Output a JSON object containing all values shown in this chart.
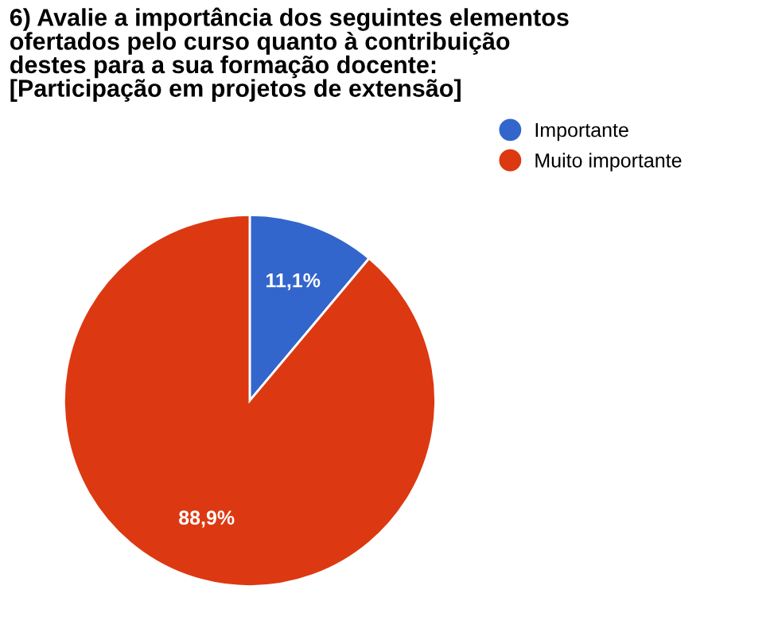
{
  "chart_data": {
    "type": "pie",
    "title": "6) Avalie a importância dos seguintes elementos\nofertados pelo curso quanto à contribuição\ndestes para a sua formação docente:\n[Participação em projetos de extensão]",
    "categories": [
      "Importante",
      "Muito importante"
    ],
    "values": [
      11.1,
      88.9
    ],
    "colors": [
      "#3366cc",
      "#dc3912"
    ],
    "value_labels": [
      "11,1%",
      "88,9%"
    ],
    "legend": "top right"
  }
}
